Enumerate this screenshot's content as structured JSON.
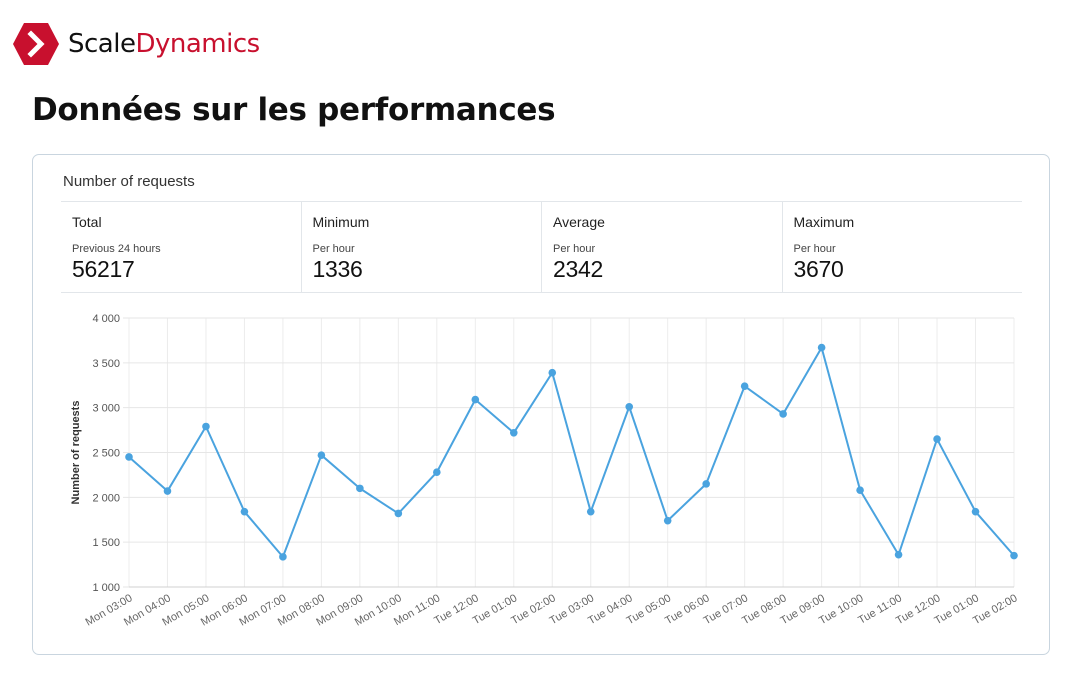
{
  "brand": {
    "name_part1": "Scale",
    "name_part2": "Dynamics",
    "accent": "#c8102e"
  },
  "page": {
    "title": "Données sur les performances"
  },
  "card": {
    "title": "Number of requests"
  },
  "stats": [
    {
      "label": "Total",
      "sub": "Previous 24 hours",
      "value": "56217"
    },
    {
      "label": "Minimum",
      "sub": "Per hour",
      "value": "1336"
    },
    {
      "label": "Average",
      "sub": "Per hour",
      "value": "2342"
    },
    {
      "label": "Maximum",
      "sub": "Per hour",
      "value": "3670"
    }
  ],
  "chart_data": {
    "type": "line",
    "ylabel": "Number of requests",
    "xlabel": "",
    "ylim": [
      1000,
      4000
    ],
    "yticks": [
      1000,
      1500,
      2000,
      2500,
      3000,
      3500,
      4000
    ],
    "ytick_labels": [
      "1 000",
      "1 500",
      "2 000",
      "2 500",
      "3 000",
      "3 500",
      "4 000"
    ],
    "grid": true,
    "line_color": "#4aa3df",
    "categories": [
      "Mon 03:00",
      "Mon 04:00",
      "Mon 05:00",
      "Mon 06:00",
      "Mon 07:00",
      "Mon 08:00",
      "Mon 09:00",
      "Mon 10:00",
      "Mon 11:00",
      "Tue 12:00",
      "Tue 01:00",
      "Tue 02:00",
      "Tue 03:00",
      "Tue 04:00",
      "Tue 05:00",
      "Tue 06:00",
      "Tue 07:00",
      "Tue 08:00",
      "Tue 09:00",
      "Tue 10:00",
      "Tue 11:00",
      "Tue 12:00",
      "Tue 01:00",
      "Tue 02:00"
    ],
    "values": [
      2450,
      2070,
      2790,
      1840,
      1336,
      2470,
      2100,
      1820,
      2280,
      3090,
      2720,
      3390,
      1840,
      3010,
      1740,
      2150,
      3240,
      2930,
      3670,
      2080,
      1360,
      2650,
      1840,
      1350
    ]
  }
}
